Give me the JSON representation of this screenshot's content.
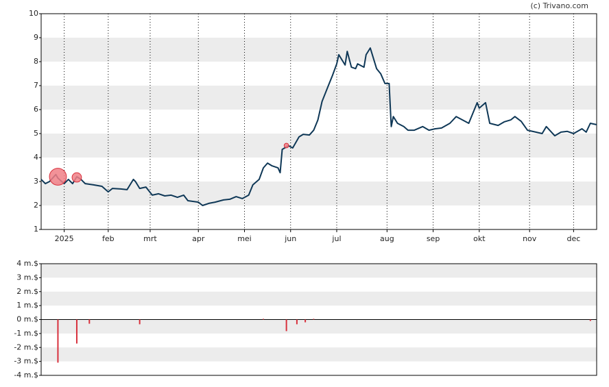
{
  "watermark": "(c) Trivano.com",
  "chart_data": [
    {
      "type": "line",
      "color": "#0e3756",
      "xlim": [
        0,
        265
      ],
      "xticks": [
        {
          "value": 11,
          "label": "2025"
        },
        {
          "value": 32,
          "label": "feb"
        },
        {
          "value": 52,
          "label": "mrt"
        },
        {
          "value": 75,
          "label": "apr"
        },
        {
          "value": 97,
          "label": "mei"
        },
        {
          "value": 119,
          "label": "jun"
        },
        {
          "value": 141,
          "label": "jul"
        },
        {
          "value": 165,
          "label": "aug"
        },
        {
          "value": 187,
          "label": "sep"
        },
        {
          "value": 209,
          "label": "okt"
        },
        {
          "value": 233,
          "label": "nov"
        },
        {
          "value": 254,
          "label": "dec"
        }
      ],
      "ylim": [
        1,
        10
      ],
      "yticks": [
        1,
        2,
        3,
        4,
        5,
        6,
        7,
        8,
        9,
        10
      ],
      "grid": true,
      "x": [
        0,
        2,
        4,
        7,
        8,
        11,
        13,
        15,
        17,
        19,
        21,
        25,
        29,
        32,
        34,
        38,
        41,
        44,
        45,
        47,
        50,
        53,
        56,
        59,
        62,
        65,
        68,
        70,
        75,
        77,
        80,
        83,
        87,
        90,
        93,
        96,
        99,
        101,
        104,
        106,
        108,
        110,
        113,
        114,
        115,
        118,
        120,
        123,
        125,
        128,
        130,
        132,
        134,
        137,
        139,
        141,
        142,
        145,
        146,
        148,
        150,
        151,
        154,
        155,
        157,
        160,
        162,
        164,
        166,
        167,
        168,
        170,
        173,
        175,
        178,
        182,
        185,
        188,
        191,
        195,
        198,
        201,
        204,
        208,
        209,
        212,
        214,
        218,
        221,
        224,
        226,
        229,
        232,
        236,
        239,
        241,
        245,
        248,
        251,
        254,
        258,
        260,
        262,
        265
      ],
      "values": [
        3.09,
        2.91,
        3.0,
        3.29,
        3.14,
        2.91,
        3.09,
        2.91,
        3.2,
        3.09,
        2.91,
        2.86,
        2.8,
        2.57,
        2.71,
        2.69,
        2.66,
        3.09,
        3.0,
        2.71,
        2.77,
        2.43,
        2.49,
        2.4,
        2.43,
        2.34,
        2.43,
        2.2,
        2.14,
        2.0,
        2.09,
        2.14,
        2.23,
        2.26,
        2.37,
        2.29,
        2.43,
        2.86,
        3.09,
        3.57,
        3.77,
        3.66,
        3.57,
        3.37,
        4.34,
        4.49,
        4.4,
        4.86,
        4.97,
        4.94,
        5.14,
        5.57,
        6.34,
        7.0,
        7.43,
        7.91,
        8.29,
        7.86,
        8.43,
        7.77,
        7.71,
        7.91,
        7.77,
        8.29,
        8.57,
        7.71,
        7.49,
        7.09,
        7.09,
        5.29,
        5.71,
        5.43,
        5.29,
        5.14,
        5.14,
        5.29,
        5.14,
        5.2,
        5.23,
        5.43,
        5.71,
        5.57,
        5.43,
        6.29,
        6.06,
        6.29,
        5.43,
        5.34,
        5.49,
        5.57,
        5.71,
        5.51,
        5.14,
        5.06,
        5.0,
        5.29,
        4.91,
        5.06,
        5.09,
        5.0,
        5.2,
        5.06,
        5.43,
        5.37
      ],
      "markers": {
        "color": "#f07f86",
        "x": [
          8,
          17,
          117
        ],
        "values": [
          3.2,
          3.17,
          4.5
        ],
        "sizes": [
          3.1,
          1.72,
          0.83
        ]
      }
    },
    {
      "type": "bar",
      "color": "#d8303c",
      "xlim": [
        0,
        265
      ],
      "ylim": [
        -4,
        4
      ],
      "yticks": [
        {
          "value": -4,
          "label": "-4 m.$"
        },
        {
          "value": -3,
          "label": "-3 m.$"
        },
        {
          "value": -2,
          "label": "-2 m.$"
        },
        {
          "value": -1,
          "label": "-1 m.$"
        },
        {
          "value": 0,
          "label": "0 m.$"
        },
        {
          "value": 1,
          "label": "1 m.$"
        },
        {
          "value": 2,
          "label": "2 m.$"
        },
        {
          "value": 3,
          "label": "3 m.$"
        },
        {
          "value": 4,
          "label": "4 m.$"
        }
      ],
      "grid": true,
      "x": [
        8,
        17,
        23,
        47,
        106,
        117,
        122,
        126,
        130,
        262
      ],
      "values": [
        -3.09,
        -1.72,
        -0.3,
        -0.34,
        0.05,
        -0.83,
        -0.34,
        -0.2,
        0.05,
        -0.1
      ]
    }
  ]
}
